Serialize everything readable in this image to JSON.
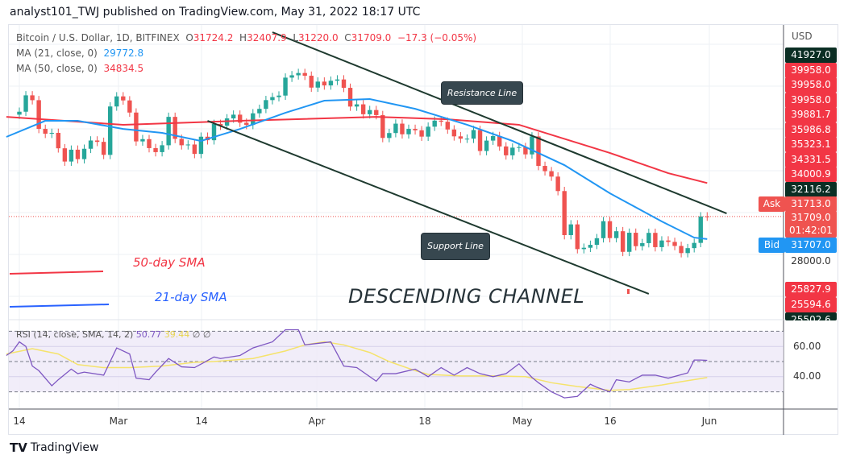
{
  "header": {
    "published": "analyst101_TWJ published on TradingView.com, May 31, 2022 18:17 UTC"
  },
  "legend": {
    "symbol": "Bitcoin / U.S. Dollar, 1D, BITFINEX",
    "o_label": "O",
    "o": "31724.2",
    "h_label": "H",
    "h": "32407.9",
    "l_label": "L",
    "l": "31220.0",
    "c_label": "C",
    "c": "31709.0",
    "change": "−17.3 (−0.05%)",
    "ma21_label": "MA (21, close, 0)",
    "ma21": "29772.8",
    "ma50_label": "MA (50, close, 0)",
    "ma50": "34834.5"
  },
  "axis": {
    "currency": "USD",
    "labels": [
      {
        "v": "41927.0",
        "c": "#0b2e24"
      },
      {
        "v": "39958.0",
        "c": "#f23645"
      },
      {
        "v": "39958.0",
        "c": "#f23645"
      },
      {
        "v": "39958.0",
        "c": "#f23645"
      },
      {
        "v": "39881.7",
        "c": "#f23645"
      },
      {
        "v": "35986.8",
        "c": "#f23645"
      },
      {
        "v": "35323.1",
        "c": "#f23645"
      },
      {
        "v": "34331.5",
        "c": "#f23645"
      },
      {
        "v": "34000.9",
        "c": "#f23645"
      },
      {
        "v": "32116.2",
        "c": "#0b2e24"
      }
    ],
    "ask_label": "Ask",
    "ask": "31713.0",
    "last": "31709.0",
    "countdown": "01:42:01",
    "bid_label": "Bid",
    "bid": "31707.0",
    "tick": "28000.0",
    "lower": [
      {
        "v": "25827.9",
        "c": "#f23645"
      },
      {
        "v": "25594.6",
        "c": "#f23645"
      },
      {
        "v": "25502.6",
        "c": "#0b2e24"
      }
    ],
    "rsi_ticks": [
      "60.00",
      "40.00"
    ]
  },
  "time_labels": [
    "14",
    "Mar",
    "14",
    "Apr",
    "18",
    "May",
    "16",
    "Jun"
  ],
  "annotations": {
    "resistance": "Resistance Line",
    "support": "Support Line",
    "channel": "DESCENDING CHANNEL",
    "sma50": "50-day SMA",
    "sma21": "21-day SMA"
  },
  "rsi_legend": {
    "label": "RSI (14, close, SMA, 14, 2)",
    "rsi": "50.77",
    "sma": "39.44",
    "na1": "∅",
    "na2": "∅"
  },
  "footer": {
    "brand": "TradingView"
  },
  "colors": {
    "up": "#26a69a",
    "down": "#ef5350",
    "ma21": "#2196f3",
    "ma50": "#f23645",
    "rsi": "#7e57c2",
    "rsi_sma": "#f5e36b",
    "trend": "#1e3a2f"
  },
  "chart_data": {
    "type": "candlestick",
    "scale": "log",
    "start_date": "2022-02-14",
    "first_open": 42200,
    "closes": [
      42550,
      44550,
      43950,
      40550,
      40000,
      40100,
      38400,
      37000,
      38250,
      37250,
      38350,
      39250,
      39100,
      37700,
      43180,
      44420,
      43920,
      42450,
      39150,
      39400,
      38420,
      37990,
      38730,
      41940,
      39430,
      38730,
      38810,
      37800,
      39670,
      39280,
      41120,
      40920,
      41760,
      42200,
      41260,
      41000,
      42360,
      42890,
      43960,
      44330,
      44520,
      46820,
      47130,
      47430,
      47070,
      45530,
      46300,
      45810,
      46410,
      46580,
      45500,
      43170,
      43440,
      42250,
      42750,
      42150,
      39530,
      40080,
      41150,
      39940,
      40550,
      40390,
      39680,
      40800,
      41500,
      41370,
      40480,
      39710,
      39450,
      39450,
      40420,
      38110,
      39240,
      39740,
      38600,
      37650,
      38470,
      38530,
      37750,
      39700,
      36550,
      36010,
      35470,
      34060,
      30100,
      31020,
      28940,
      29050,
      29290,
      29840,
      31300,
      29850,
      30430,
      28720,
      30300,
      29180,
      29430,
      30290,
      29100,
      29650,
      29530,
      29200,
      28620,
      29020,
      29450,
      31720,
      31709
    ],
    "ma50": [
      [
        "2022-02-12",
        41940
      ],
      [
        "2022-03-02",
        41020
      ],
      [
        "2022-03-20",
        41480
      ],
      [
        "2022-04-10",
        41940
      ],
      [
        "2022-04-21",
        41660
      ],
      [
        "2022-05-02",
        41020
      ],
      [
        "2022-05-16",
        37900
      ],
      [
        "2022-05-25",
        35810
      ],
      [
        "2022-05-31",
        34834.5
      ]
    ],
    "ma21": [
      [
        "2022-02-12",
        39650
      ],
      [
        "2022-02-18",
        41480
      ],
      [
        "2022-02-23",
        41480
      ],
      [
        "2022-03-02",
        40540
      ],
      [
        "2022-03-08",
        40100
      ],
      [
        "2022-03-14",
        39200
      ],
      [
        "2022-03-20",
        40540
      ],
      [
        "2022-03-27",
        42420
      ],
      [
        "2022-04-02",
        43890
      ],
      [
        "2022-04-09",
        44090
      ],
      [
        "2022-04-16",
        42900
      ],
      [
        "2022-04-24",
        41020
      ],
      [
        "2022-05-01",
        39200
      ],
      [
        "2022-05-09",
        36630
      ],
      [
        "2022-05-16",
        33850
      ],
      [
        "2022-05-24",
        31280
      ],
      [
        "2022-05-29",
        29890
      ],
      [
        "2022-05-31",
        29772.8
      ]
    ],
    "trendlines": {
      "resistance": [
        [
          "2022-03-25",
          53180
        ],
        [
          "2022-06-03",
          31990
        ]
      ],
      "support": [
        [
          "2022-03-15",
          41480
        ],
        [
          "2022-05-22",
          25525
        ]
      ]
    },
    "rsi": {
      "range": [
        0,
        100
      ],
      "bands": [
        30,
        50,
        70
      ],
      "values": [
        [
          "2022-02-12",
          54
        ],
        [
          "2022-02-13",
          57
        ],
        [
          "2022-02-14",
          63
        ],
        [
          "2022-02-15",
          60
        ],
        [
          "2022-02-16",
          47
        ],
        [
          "2022-02-17",
          44
        ],
        [
          "2022-02-19",
          34
        ],
        [
          "2022-02-20",
          38
        ],
        [
          "2022-02-22",
          45
        ],
        [
          "2022-02-23",
          42
        ],
        [
          "2022-02-24",
          43
        ],
        [
          "2022-02-27",
          41
        ],
        [
          "2022-03-01",
          59
        ],
        [
          "2022-03-03",
          55
        ],
        [
          "2022-03-04",
          39
        ],
        [
          "2022-03-06",
          38
        ],
        [
          "2022-03-07",
          43
        ],
        [
          "2022-03-09",
          52
        ],
        [
          "2022-03-11",
          46.5
        ],
        [
          "2022-03-13",
          46
        ],
        [
          "2022-03-16",
          53
        ],
        [
          "2022-03-17",
          52
        ],
        [
          "2022-03-20",
          54
        ],
        [
          "2022-03-22",
          59
        ],
        [
          "2022-03-25",
          63
        ],
        [
          "2022-03-27",
          71
        ],
        [
          "2022-03-29",
          71
        ],
        [
          "2022-03-30",
          61
        ],
        [
          "2022-04-01",
          62
        ],
        [
          "2022-04-03",
          63
        ],
        [
          "2022-04-05",
          47
        ],
        [
          "2022-04-07",
          46
        ],
        [
          "2022-04-10",
          37
        ],
        [
          "2022-04-11",
          42
        ],
        [
          "2022-04-13",
          42
        ],
        [
          "2022-04-16",
          45
        ],
        [
          "2022-04-18",
          40
        ],
        [
          "2022-04-20",
          46
        ],
        [
          "2022-04-22",
          41
        ],
        [
          "2022-04-24",
          46
        ],
        [
          "2022-04-26",
          42
        ],
        [
          "2022-04-28",
          40
        ],
        [
          "2022-04-30",
          42
        ],
        [
          "2022-05-02",
          48.5
        ],
        [
          "2022-05-04",
          39.5
        ],
        [
          "2022-05-05",
          36
        ],
        [
          "2022-05-07",
          30
        ],
        [
          "2022-05-09",
          26
        ],
        [
          "2022-05-11",
          27
        ],
        [
          "2022-05-12",
          31
        ],
        [
          "2022-05-13",
          35
        ],
        [
          "2022-05-14",
          33
        ],
        [
          "2022-05-16",
          30
        ],
        [
          "2022-05-17",
          38
        ],
        [
          "2022-05-19",
          36.5
        ],
        [
          "2022-05-21",
          41
        ],
        [
          "2022-05-23",
          41
        ],
        [
          "2022-05-25",
          39
        ],
        [
          "2022-05-28",
          42.5
        ],
        [
          "2022-05-29",
          51
        ],
        [
          "2022-05-30",
          51
        ],
        [
          "2022-05-31",
          50.77
        ]
      ],
      "sma": [
        [
          "2022-02-12",
          55
        ],
        [
          "2022-02-16",
          58.5
        ],
        [
          "2022-02-20",
          55
        ],
        [
          "2022-02-23",
          48
        ],
        [
          "2022-02-27",
          46
        ],
        [
          "2022-03-03",
          46
        ],
        [
          "2022-03-08",
          47
        ],
        [
          "2022-03-13",
          49.5
        ],
        [
          "2022-03-16",
          50
        ],
        [
          "2022-03-22",
          52
        ],
        [
          "2022-03-27",
          57
        ],
        [
          "2022-03-30",
          61
        ],
        [
          "2022-04-02",
          63
        ],
        [
          "2022-04-05",
          61
        ],
        [
          "2022-04-09",
          56
        ],
        [
          "2022-04-12",
          50
        ],
        [
          "2022-04-16",
          44
        ],
        [
          "2022-04-18",
          41.5
        ],
        [
          "2022-04-23",
          40.5
        ],
        [
          "2022-04-28",
          40.5
        ],
        [
          "2022-05-03",
          40
        ],
        [
          "2022-05-07",
          36
        ],
        [
          "2022-05-11",
          33.5
        ],
        [
          "2022-05-16",
          31
        ],
        [
          "2022-05-19",
          31.5
        ],
        [
          "2022-05-24",
          34.5
        ],
        [
          "2022-05-27",
          36.7
        ],
        [
          "2022-05-31",
          39.44
        ]
      ]
    }
  }
}
